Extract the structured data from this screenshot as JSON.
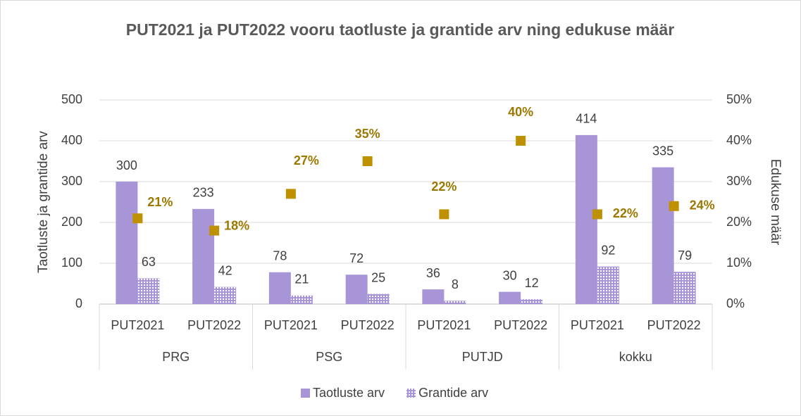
{
  "chart_data": {
    "type": "bar",
    "title": "PUT2021 ja PUT2022 vooru taotluste ja grantide arv ning edukuse määr",
    "ylabel": "Taotluste ja grantide arv",
    "y2label": "Edukuse määr",
    "categories": [
      "PUT2021",
      "PUT2022",
      "PUT2021",
      "PUT2022",
      "PUT2021",
      "PUT2022",
      "PUT2021",
      "PUT2022"
    ],
    "groups": [
      "PRG",
      "PSG",
      "PUTJD",
      "kokku"
    ],
    "series": [
      {
        "name": "Taotluste arv",
        "type": "bar",
        "color": "#a895d8",
        "values": [
          300,
          233,
          78,
          72,
          36,
          30,
          414,
          335
        ]
      },
      {
        "name": "Grantide arv",
        "type": "bar",
        "color": "#a895d8",
        "pattern": "dots",
        "values": [
          63,
          42,
          21,
          25,
          8,
          12,
          92,
          79
        ]
      },
      {
        "type": "scatter",
        "axis": "y2",
        "color": "#bf9000",
        "label_color": "#9c7800",
        "values": [
          21,
          18,
          27,
          35,
          22,
          40,
          22,
          24
        ],
        "value_labels": [
          "21%",
          "18%",
          "27%",
          "35%",
          "22%",
          "40%",
          "22%",
          "24%"
        ]
      }
    ],
    "ylim": [
      0,
      500
    ],
    "yticks": [
      0,
      100,
      200,
      300,
      400,
      500
    ],
    "y2lim": [
      0,
      50
    ],
    "y2ticks": [
      {
        "value": 0,
        "label": "0%"
      },
      {
        "value": 10,
        "label": "10%"
      },
      {
        "value": 20,
        "label": "20%"
      },
      {
        "value": 30,
        "label": "30%"
      },
      {
        "value": 40,
        "label": "40%"
      },
      {
        "value": 50,
        "label": "50%"
      }
    ],
    "grid": true,
    "legend": "bottom"
  }
}
